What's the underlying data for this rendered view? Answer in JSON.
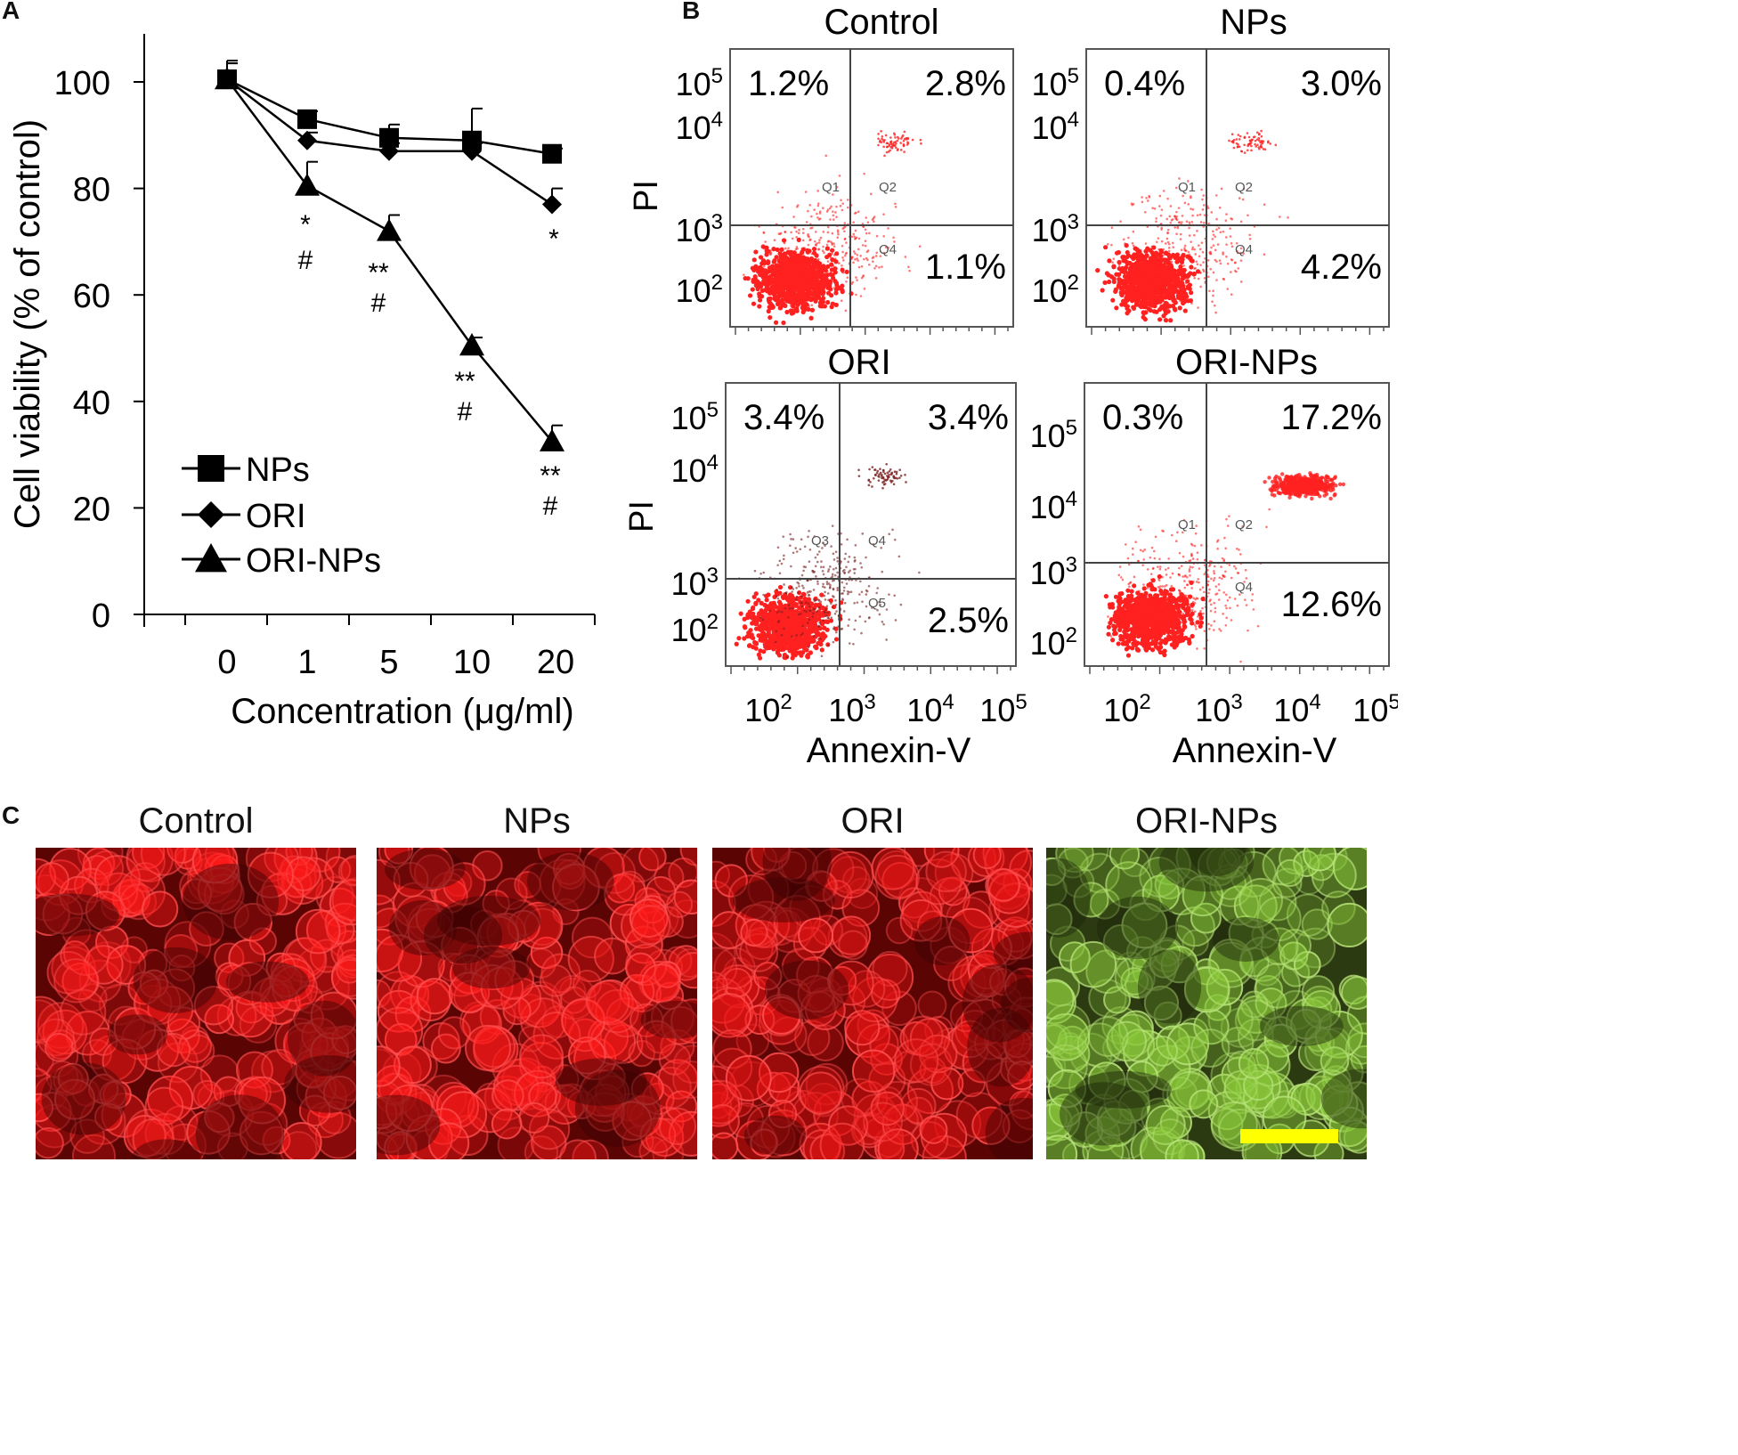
{
  "panels": {
    "A": "A",
    "B": "B",
    "C": "C"
  },
  "chart_data": [
    {
      "type": "line",
      "panel": "A",
      "xlabel": "Concentration (μg/ml)",
      "ylabel": "Cell viability (% of control)",
      "x_ticks": [
        "0",
        "1",
        "5",
        "10",
        "20"
      ],
      "y_ticks": [
        "0",
        "20",
        "40",
        "60",
        "80",
        "100"
      ],
      "ylim": [
        0,
        100
      ],
      "series": [
        {
          "name": "NPs",
          "marker": "square",
          "values": [
            100.5,
            93,
            89.5,
            89,
            86.5
          ],
          "errors": [
            3.5,
            1.5,
            2.5,
            6,
            1
          ]
        },
        {
          "name": "ORI",
          "marker": "diamond",
          "values": [
            100.5,
            89,
            87,
            87,
            77
          ],
          "errors": [
            3,
            1.5,
            1.5,
            1.5,
            3
          ]
        },
        {
          "name": "ORI-NPs",
          "marker": "triangle",
          "values": [
            100.5,
            80.5,
            72,
            50.5,
            32.5
          ],
          "errors": [
            3,
            4.5,
            3,
            1.5,
            3
          ]
        }
      ],
      "annotations": [
        {
          "x": "1",
          "lines": [
            "*",
            "#"
          ]
        },
        {
          "x": "5",
          "lines": [
            "**",
            "#"
          ]
        },
        {
          "x": "10",
          "lines": [
            "**",
            "#"
          ]
        },
        {
          "x": "20",
          "lines": [
            "**",
            "#"
          ]
        },
        {
          "x": "20",
          "series": "ORI",
          "lines": [
            "*"
          ]
        }
      ],
      "legend_position": "bottom-left",
      "grid": false
    },
    {
      "type": "scatter",
      "panel": "B",
      "xlabel": "Annexin-V",
      "ylabel": "PI",
      "axis_scale": "log",
      "tick_labels": [
        "10^2",
        "10^3",
        "10^4",
        "10^5"
      ],
      "plots": [
        {
          "title": "Control",
          "q1": "1.2%",
          "q2": "2.8%",
          "q4": "1.1%",
          "quad_labels": [
            "Q1",
            "Q2",
            "Q4"
          ]
        },
        {
          "title": "NPs",
          "q1": "0.4%",
          "q2": "3.0%",
          "q4": "4.2%",
          "quad_labels": [
            "Q1",
            "Q2",
            "Q4"
          ]
        },
        {
          "title": "ORI",
          "q1": "3.4%",
          "q2": "3.4%",
          "q4": "2.5%",
          "quad_labels": [
            "Q3",
            "Q4",
            "Q5"
          ]
        },
        {
          "title": "ORI-NPs",
          "q1": "0.3%",
          "q2": "17.2%",
          "q4": "12.6%",
          "quad_labels": [
            "Q1",
            "Q2",
            "Q4"
          ]
        }
      ]
    }
  ],
  "micrographs": {
    "titles": [
      "Control",
      "NPs",
      "ORI",
      "ORI-NPs"
    ],
    "colors": [
      "#ff1a1a",
      "#ff1a1a",
      "#e81515",
      "#8ac83a"
    ],
    "scale_bar_color": "#ffff00"
  }
}
